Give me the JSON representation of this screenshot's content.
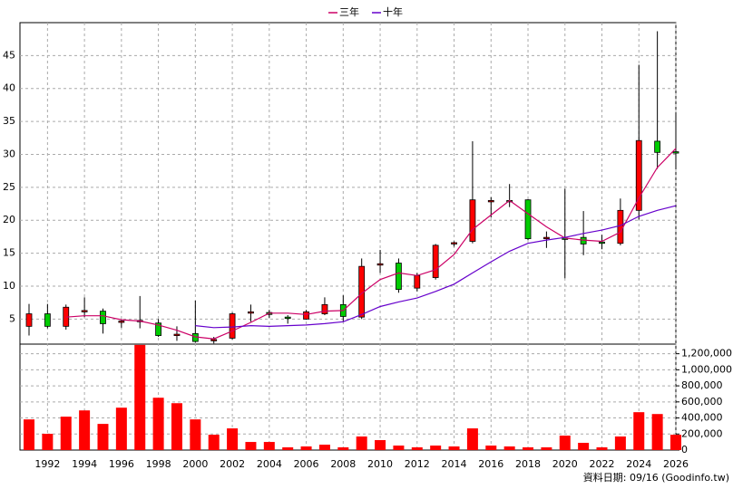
{
  "chart_data": {
    "type": "candlestick",
    "categories": [
      null,
      "1992",
      null,
      "1994",
      null,
      "1996",
      null,
      "1998",
      null,
      "2000",
      null,
      "2002",
      null,
      "2004",
      null,
      "2006",
      null,
      "2008",
      null,
      "2010",
      null,
      "2012",
      null,
      "2014",
      null,
      "2016",
      null,
      "2018",
      null,
      "2020",
      null,
      "2022",
      null,
      "2024",
      null,
      "2026"
    ],
    "open": [
      3.9,
      5.8,
      3.9,
      6.2,
      6.2,
      4.5,
      4.7,
      4.4,
      2.6,
      2.8,
      1.8,
      2.1,
      6.0,
      6.0,
      5.3,
      5.0,
      5.8,
      7.2,
      5.3,
      13.3,
      13.5,
      9.7,
      11.3,
      16.5,
      16.8,
      23.0,
      23.0,
      23.1,
      17.3,
      17.3,
      17.4,
      16.7,
      16.5,
      21.5,
      32.0,
      30.4
    ],
    "high": [
      7.3,
      7.3,
      7.2,
      8.3,
      6.6,
      5.0,
      8.5,
      5.0,
      3.9,
      7.8,
      2.3,
      6.0,
      7.2,
      6.4,
      5.6,
      6.4,
      8.3,
      8.6,
      14.2,
      15.5,
      14.2,
      12.0,
      16.4,
      16.8,
      32.0,
      23.5,
      25.5,
      23.2,
      18.3,
      24.8,
      21.4,
      17.8,
      23.3,
      43.6,
      48.7,
      36.0
    ],
    "low": [
      2.5,
      3.6,
      3.4,
      5.3,
      2.8,
      3.7,
      3.6,
      2.3,
      1.7,
      1.4,
      1.3,
      1.9,
      4.6,
      5.2,
      4.3,
      4.9,
      5.6,
      4.6,
      5.0,
      12.0,
      9.0,
      9.2,
      11.0,
      16.0,
      16.5,
      20.4,
      22.0,
      17.0,
      15.8,
      11.2,
      14.7,
      15.6,
      16.2,
      20.1,
      27.8,
      28.0
    ],
    "close": [
      5.8,
      3.9,
      6.8,
      6.3,
      4.3,
      4.7,
      4.8,
      2.5,
      2.7,
      1.6,
      1.9,
      5.8,
      6.1,
      5.7,
      5.2,
      6.1,
      7.2,
      5.4,
      13.0,
      13.4,
      9.5,
      11.6,
      16.2,
      16.6,
      23.1,
      23.0,
      22.9,
      17.2,
      17.4,
      17.2,
      16.4,
      16.6,
      21.5,
      32.1,
      30.3,
      30.3
    ],
    "up_color": "#ff0000",
    "down_color": "#00cc00",
    "series": [
      {
        "name": "三年",
        "color": "#cc0066",
        "values": [
          null,
          null,
          5.3,
          5.5,
          5.5,
          4.9,
          4.7,
          4.1,
          3.3,
          2.3,
          2.0,
          3.2,
          4.5,
          5.9,
          5.9,
          5.7,
          6.2,
          6.3,
          8.9,
          11.0,
          12.0,
          11.6,
          12.5,
          14.8,
          18.6,
          20.8,
          23.0,
          21.0,
          19.0,
          17.3,
          17.0,
          16.8,
          18.2,
          23.4,
          28.0,
          30.9
        ]
      },
      {
        "name": "十年",
        "color": "#6600cc",
        "values": [
          null,
          null,
          null,
          null,
          null,
          null,
          null,
          null,
          null,
          4.0,
          3.7,
          3.8,
          4.0,
          3.9,
          4.0,
          4.1,
          4.3,
          4.6,
          5.7,
          6.9,
          7.6,
          8.2,
          9.2,
          10.3,
          12.0,
          13.7,
          15.3,
          16.5,
          17.0,
          17.4,
          18.0,
          18.5,
          19.2,
          20.6,
          21.5,
          22.2
        ]
      }
    ],
    "volume": [
      382000,
      202000,
      416000,
      494000,
      326000,
      528000,
      1310000,
      652000,
      584000,
      382000,
      191000,
      270000,
      101000,
      101000,
      34000,
      45000,
      67000,
      34000,
      169000,
      124000,
      56000,
      34000,
      56000,
      45000,
      270000,
      56000,
      45000,
      34000,
      34000,
      180000,
      90000,
      34000,
      169000,
      472000,
      449000,
      191000
    ],
    "volume_color": "#ff0000",
    "ylim": [
      1.2,
      50
    ],
    "yticks": [
      5,
      10,
      15,
      20,
      25,
      30,
      35,
      40,
      45
    ],
    "y2lim": [
      0,
      1320000
    ],
    "y2ticks": [
      0,
      {
        "value": 200000,
        "label": "200,000"
      },
      {
        "value": 400000,
        "label": "400,000"
      },
      {
        "value": 600000,
        "label": "600,000"
      },
      {
        "value": 800000,
        "label": "800,000"
      },
      {
        "value": 1000000,
        "label": "1,000,000"
      },
      {
        "value": 1200000,
        "label": "1,200,000"
      }
    ],
    "grid": true,
    "legend": "top",
    "source": "資料日期: 09/16 (Goodinfo.tw)"
  }
}
